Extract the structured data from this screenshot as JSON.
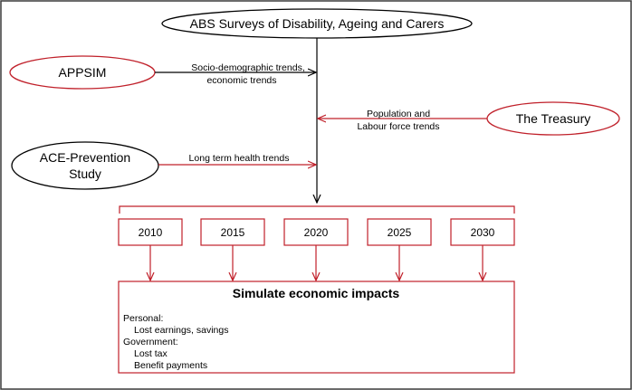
{
  "colors": {
    "red": "#c0202a",
    "black": "#000000",
    "border": "#3a3a3a"
  },
  "nodes": {
    "abs_surveys": "ABS Surveys of Disability, Ageing and Carers",
    "appsim": "APPSIM",
    "treasury": "The Treasury",
    "ace_line1": "ACE-Prevention",
    "ace_line2": "Study"
  },
  "edges": {
    "appsim_line1": "Socio-demographic trends,",
    "appsim_line2": "economic trends",
    "treasury_line1": "Population and",
    "treasury_line2": "Labour force trends",
    "ace_label": "Long term health trends"
  },
  "years": [
    "2010",
    "2015",
    "2020",
    "2025",
    "2030"
  ],
  "impacts": {
    "title": "Simulate economic impacts",
    "lines": [
      "Personal:",
      "Lost earnings, savings",
      "Government:",
      "Lost tax",
      "Benefit payments"
    ]
  }
}
